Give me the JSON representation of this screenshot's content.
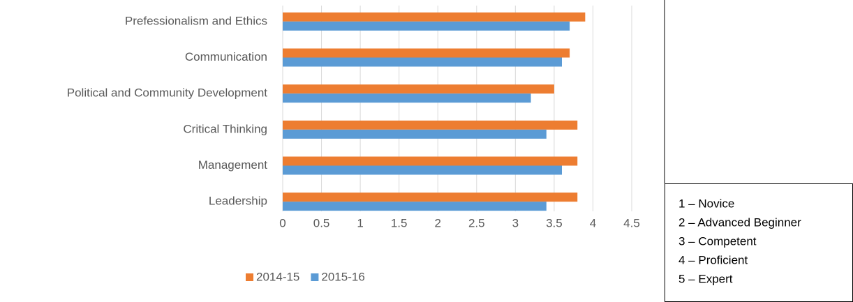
{
  "chart_data": {
    "type": "hbar",
    "categories": [
      "Prefessionalism and Ethics",
      "Communication",
      "Political and Community Development",
      "Critical Thinking",
      "Management",
      "Leadership"
    ],
    "series": [
      {
        "name": "2014-15",
        "color": "#ed7d31",
        "values": [
          3.9,
          3.7,
          3.5,
          3.8,
          3.8,
          3.8
        ]
      },
      {
        "name": "2015-16",
        "color": "#5b9bd5",
        "values": [
          3.7,
          3.6,
          3.2,
          3.4,
          3.6,
          3.4
        ]
      }
    ],
    "xlim": [
      0,
      4.5
    ],
    "xticks": [
      0,
      0.5,
      1,
      1.5,
      2,
      2.5,
      3,
      3.5,
      4,
      4.5
    ],
    "grid": true,
    "legend": "bottom",
    "key": [
      "1 – Novice",
      "2 – Advanced Beginner",
      "3 – Competent",
      "4 – Proficient",
      "5 – Expert"
    ]
  }
}
